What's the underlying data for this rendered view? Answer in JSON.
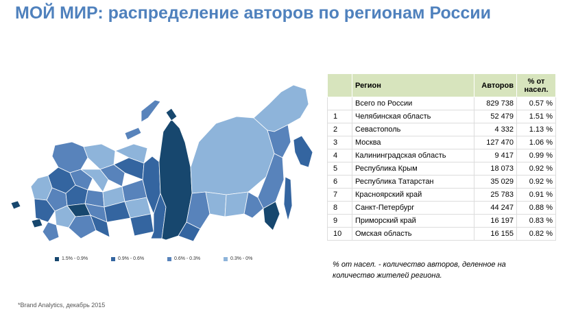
{
  "title": "МОЙ МИР: распределение авторов по регионам России",
  "colors": {
    "band1": "#17476e",
    "band2": "#3465a0",
    "band3": "#5883bb",
    "band4": "#8eb4da",
    "title": "#4f81bd",
    "table_header": "#d7e4bd"
  },
  "map": {
    "legend": [
      {
        "label": "1.5% - 0.9%",
        "color": "#17476e"
      },
      {
        "label": "0.9% - 0.6%",
        "color": "#3465a0"
      },
      {
        "label": "0.6% - 0.3%",
        "color": "#5883bb"
      },
      {
        "label": "0.3% - 0%",
        "color": "#8eb4da"
      }
    ]
  },
  "table": {
    "headers": {
      "rank": "",
      "region": "Регион",
      "authors": "Авторов",
      "pct": "% от насел."
    },
    "total": {
      "rank": "",
      "region": "Всего по России",
      "authors": "829 738",
      "pct": "0.57 %"
    },
    "rows": [
      {
        "rank": "1",
        "region": "Челябинская область",
        "authors": "52 479",
        "pct": "1.51 %"
      },
      {
        "rank": "2",
        "region": "Севастополь",
        "authors": "4 332",
        "pct": "1.13 %"
      },
      {
        "rank": "3",
        "region": "Москва",
        "authors": "127 470",
        "pct": "1.06 %"
      },
      {
        "rank": "4",
        "region": "Калининградская область",
        "authors": "9 417",
        "pct": "0.99 %"
      },
      {
        "rank": "5",
        "region": "Республика Крым",
        "authors": "18 073",
        "pct": "0.92 %"
      },
      {
        "rank": "6",
        "region": "Республика Татарстан",
        "authors": "35 029",
        "pct": "0.92 %"
      },
      {
        "rank": "7",
        "region": "Красноярский край",
        "authors": "25 783",
        "pct": "0.91 %"
      },
      {
        "rank": "8",
        "region": "Санкт-Петербург",
        "authors": "44 247",
        "pct": "0.88 %"
      },
      {
        "rank": "9",
        "region": "Приморский край",
        "authors": "16 197",
        "pct": "0.83 %"
      },
      {
        "rank": "10",
        "region": "Омская область",
        "authors": "16 155",
        "pct": "0.82 %"
      }
    ]
  },
  "note": "% от насел. - количество авторов, деленное на количество жителей региона.",
  "source": "*Brand Analytics, декабрь 2015"
}
